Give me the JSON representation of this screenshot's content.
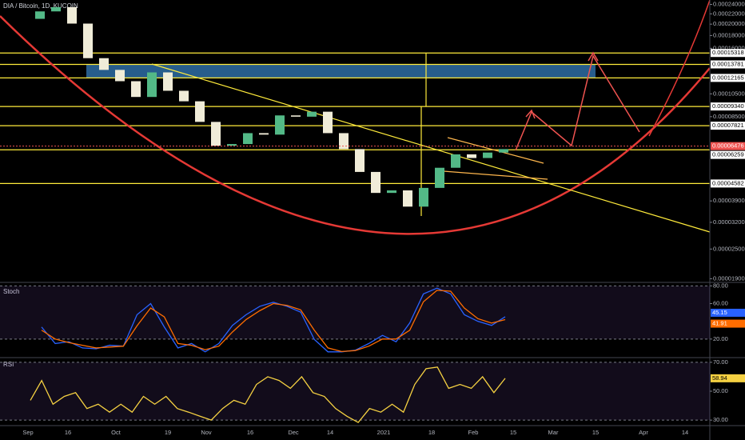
{
  "header": {
    "symbol": "DIA / Bitcoin, 1D, KUCOIN"
  },
  "time_axis": {
    "labels": [
      "Sep",
      "16",
      "Oct",
      "19",
      "Nov",
      "16",
      "Dec",
      "14",
      "2021",
      "18",
      "Feb",
      "15",
      "Mar",
      "15",
      "Apr",
      "14"
    ]
  },
  "chart_data": [
    {
      "type": "candlestick",
      "log_scale": true,
      "up_color": "#53b987",
      "down_color": "#f0ecd8",
      "level_color": "#ffeb3b",
      "zone_color": "#2e6da4",
      "open": [
        0.00021,
        0.000225,
        0.000234,
        0.000201,
        0.000146,
        0.000131,
        0.000118,
        0.000102,
        0.000128,
        0.000108,
        9.8e-05,
        8.1e-05,
        6.5e-05,
        6.6e-05,
        7.3e-05,
        7.2e-05,
        8.6e-05,
        8.5e-05,
        8.9e-05,
        7.3e-05,
        6.3e-05,
        5.1e-05,
        4.2e-05,
        4.3e-05,
        3.7e-05,
        4.4e-05,
        5.3e-05,
        6e-05,
        5.8e-05,
        6.1e-05
      ],
      "close": [
        0.000225,
        0.000234,
        0.000201,
        0.000146,
        0.000131,
        0.000118,
        0.000102,
        0.000128,
        0.000108,
        9.8e-05,
        8.1e-05,
        6.5e-05,
        6.6e-05,
        7.3e-05,
        7.2e-05,
        8.6e-05,
        8.5e-05,
        8.9e-05,
        7.3e-05,
        6.3e-05,
        5.1e-05,
        4.2e-05,
        4.3e-05,
        3.7e-05,
        4.4e-05,
        5.3e-05,
        6e-05,
        5.8e-05,
        6.1e-05,
        6.3e-05
      ],
      "ylim": [
        1.85e-05,
        0.00025
      ],
      "yticks": [
        {
          "value": 0.00024,
          "label": "0.00024000"
        },
        {
          "value": 0.00022,
          "label": "0.00022000"
        },
        {
          "value": 0.0002,
          "label": "0.00020000"
        },
        {
          "value": 0.00018,
          "label": "0.00018000"
        },
        {
          "value": 0.00016,
          "label": "0.00016000"
        },
        {
          "value": 0.000105,
          "label": "0.00010500"
        },
        {
          "value": 8.5e-05,
          "label": "0.00008500"
        },
        {
          "value": 3.9e-05,
          "label": "0.00003900"
        },
        {
          "value": 3.2e-05,
          "label": "0.00003200"
        },
        {
          "value": 2.5e-05,
          "label": "0.00002500"
        },
        {
          "value": 1.9e-05,
          "label": "0.00001900"
        }
      ],
      "levels": [
        0.00015318,
        0.00013781,
        0.00012165,
        {
          "value": 9.34e-05,
          "label": "0.00009340"
        },
        7.821e-05,
        6.259e-05,
        4.582e-05
      ],
      "zone": [
        0.00012165,
        0.00013781
      ],
      "current_price": {
        "value": 6.476e-05,
        "color": "#ef5350"
      }
    },
    {
      "type": "line",
      "title": "Stoch",
      "ylim": [
        0,
        83
      ],
      "yticks": [
        {
          "value": 80,
          "label": "80.00"
        },
        {
          "value": 60,
          "label": "60.00"
        },
        {
          "value": 20,
          "label": "20.00"
        }
      ],
      "band": [
        20,
        80
      ],
      "series": [
        {
          "color": "#2962ff",
          "values": [
            33.6,
            15,
            17,
            10,
            9,
            13,
            12,
            47.5,
            60,
            33.6,
            10,
            15,
            5.6,
            15,
            35.4,
            47.5,
            56.9,
            61.5,
            56.9,
            50.4,
            19.6,
            5.6,
            5.6,
            7.4,
            15,
            24.2,
            17,
            38.2,
            70.9,
            77.4,
            70.9,
            47.5,
            40,
            35.4,
            45.15
          ]
        },
        {
          "color": "#ff6d00",
          "values": [
            30,
            20,
            16,
            13,
            10,
            11,
            12,
            35,
            55,
            45,
            15,
            13,
            8,
            12,
            28,
            42,
            52,
            60,
            58,
            53,
            30,
            10,
            6,
            7,
            12,
            20,
            20,
            30,
            62,
            75,
            74,
            55,
            43,
            38,
            41.91
          ]
        }
      ]
    },
    {
      "type": "line",
      "title": "RSI",
      "ylim": [
        26.2,
        72.7
      ],
      "yticks": [
        {
          "value": 70,
          "label": "70.00"
        },
        {
          "value": 50,
          "label": "50.00"
        },
        {
          "value": 30,
          "label": "30.00"
        }
      ],
      "band": [
        30,
        70
      ],
      "series": [
        {
          "color": "#f5d142",
          "values": [
            43.7,
            57.4,
            41,
            46.4,
            49,
            38,
            41,
            35.5,
            41,
            35.5,
            46.4,
            41,
            46.4,
            38,
            35.5,
            32.7,
            30,
            38,
            43.7,
            41,
            54.7,
            60,
            57.4,
            52,
            60,
            49,
            46.4,
            38,
            32.7,
            28.4,
            38,
            35.5,
            41,
            35.5,
            54.7,
            65.6,
            66.7,
            52,
            54.7,
            52,
            60,
            49,
            58.94
          ]
        }
      ]
    }
  ]
}
